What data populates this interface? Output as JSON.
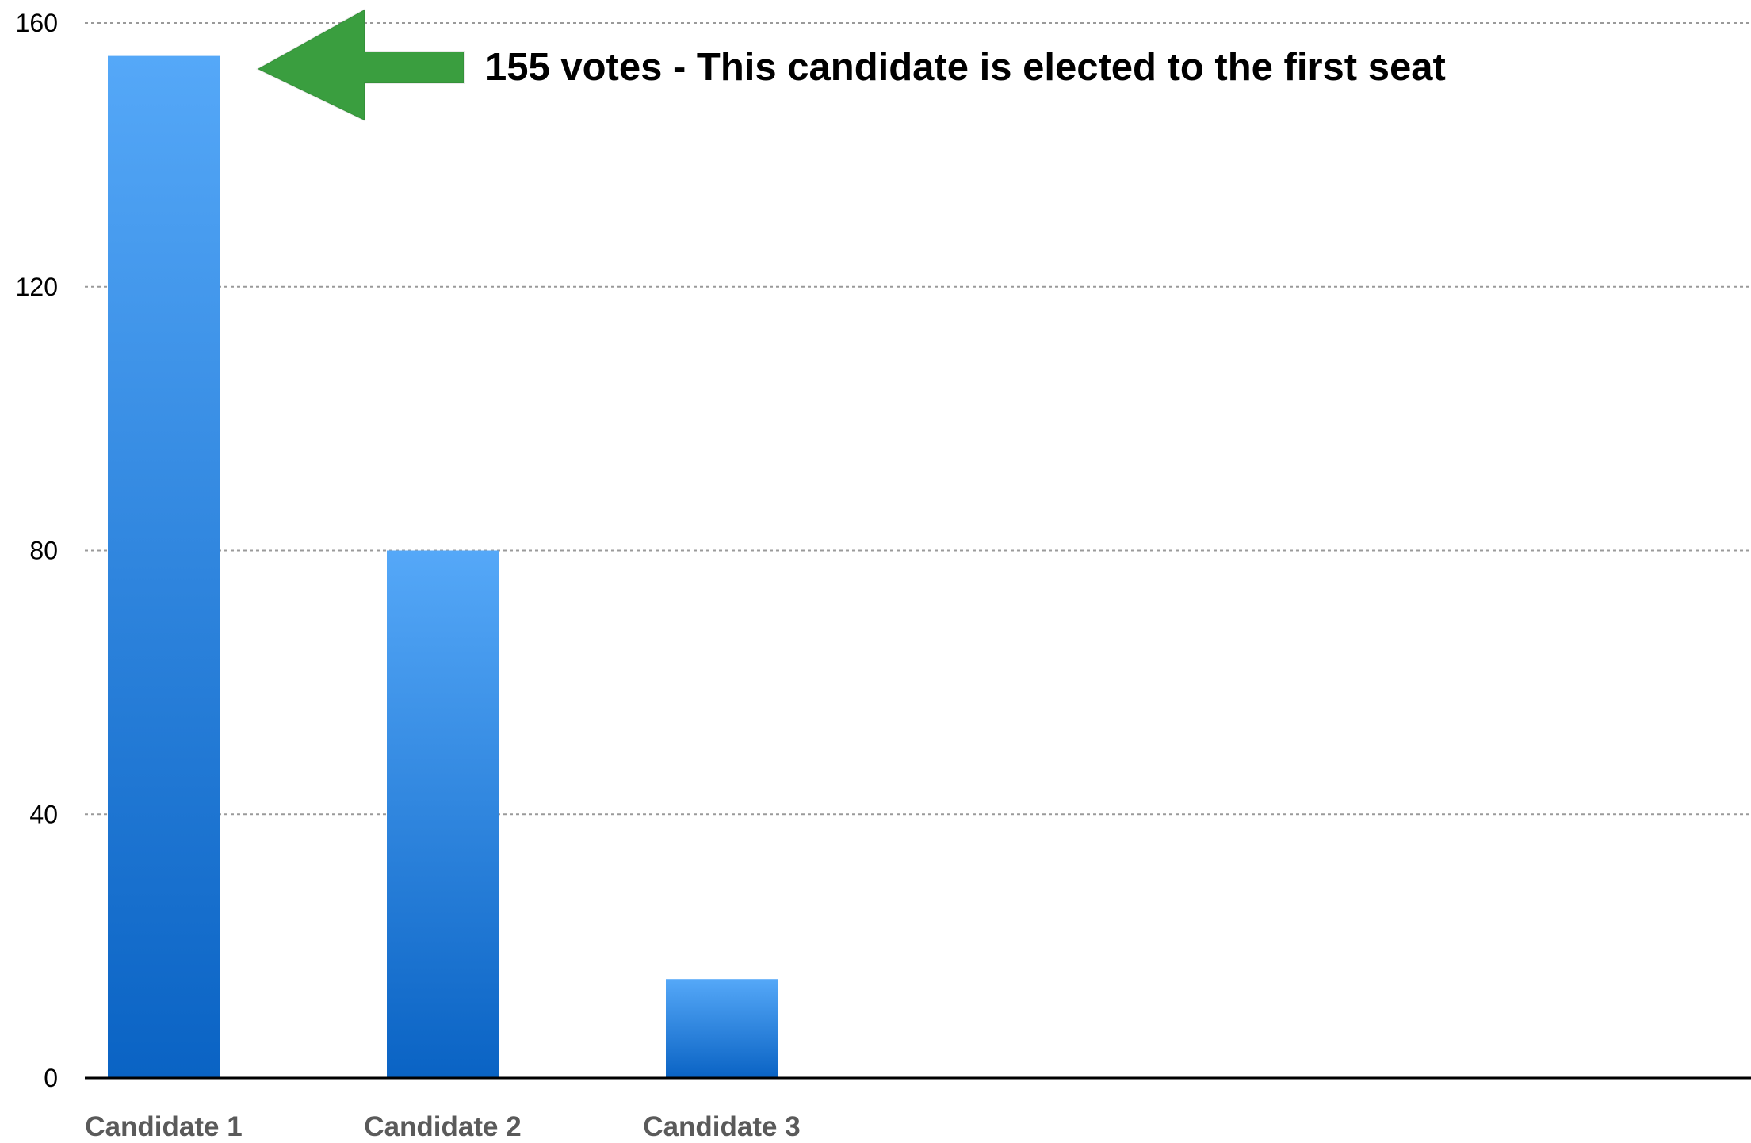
{
  "chart_data": {
    "type": "bar",
    "categories": [
      "Candidate 1",
      "Candidate 2",
      "Candidate 3"
    ],
    "series": [
      {
        "values": [
          155,
          80,
          15
        ]
      }
    ],
    "ylim": [
      0,
      160
    ],
    "yticks": [
      "0",
      "40",
      "80",
      "120",
      "160"
    ],
    "grid": true,
    "legend": "none",
    "annotation": {
      "text": "155 votes - This candidate is elected to the first seat",
      "target_category": "Candidate 1",
      "arrow_color": "#3a9e3f"
    },
    "colors": {
      "bar_top": "#55a8f8",
      "bar_bottom": "#0a63c4",
      "arrow": "#3a9e3f"
    }
  }
}
